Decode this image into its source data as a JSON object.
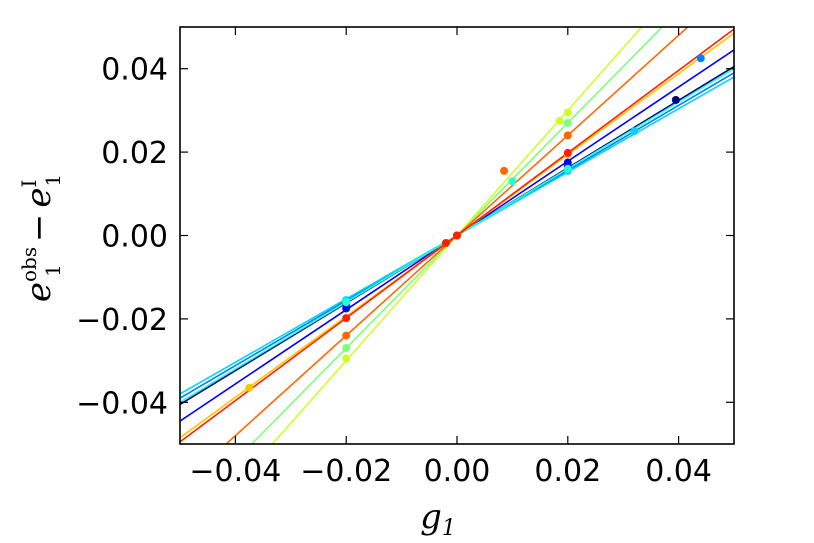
{
  "chart_data": {
    "type": "scatter",
    "title": "",
    "xlabel": "g1",
    "ylabel": "e1^obs − e1^I",
    "xlim": [
      -0.05,
      0.05
    ],
    "ylim": [
      -0.05,
      0.05
    ],
    "xticks": [
      -0.04,
      -0.02,
      0.0,
      0.02,
      0.04
    ],
    "yticks": [
      -0.04,
      -0.02,
      0.0,
      0.02,
      0.04
    ],
    "xtick_labels": [
      "−0.04",
      "−0.02",
      "0.00",
      "0.02",
      "0.04"
    ],
    "ytick_labels": [
      "−0.04",
      "−0.02",
      "0.00",
      "0.02",
      "0.04"
    ],
    "grid": false,
    "legend": "none",
    "series": [
      {
        "color": "#000080",
        "slope": 0.81,
        "points": [
          [
            -0.02,
            -0.0165
          ],
          [
            0.0,
            0.0
          ],
          [
            0.02,
            0.0165
          ],
          [
            0.0395,
            0.0325
          ]
        ]
      },
      {
        "color": "#0000ff",
        "slope": 0.89,
        "points": [
          [
            -0.02,
            -0.0175
          ],
          [
            0.0,
            0.0
          ],
          [
            0.02,
            0.0175
          ]
        ]
      },
      {
        "color": "#0080ff",
        "slope": 0.78,
        "points": [
          [
            -0.02,
            -0.016
          ],
          [
            0.0,
            0.0
          ],
          [
            0.02,
            0.016
          ],
          [
            0.044,
            0.0425
          ]
        ]
      },
      {
        "color": "#00d4ff",
        "slope": 0.76,
        "points": [
          [
            -0.02,
            -0.0155
          ],
          [
            0.0,
            0.0
          ],
          [
            0.02,
            0.0155
          ],
          [
            0.032,
            0.025
          ]
        ]
      },
      {
        "color": "#29ffce",
        "slope": 0.8,
        "points": [
          [
            -0.02,
            -0.016
          ],
          [
            0.0,
            0.0
          ],
          [
            0.02,
            0.016
          ],
          [
            0.01,
            0.013
          ]
        ]
      },
      {
        "color": "#7dff7a",
        "slope": 1.35,
        "points": [
          [
            -0.02,
            -0.027
          ],
          [
            0.0,
            0.0
          ],
          [
            0.02,
            0.027
          ]
        ]
      },
      {
        "color": "#ceff29",
        "slope": 1.5,
        "points": [
          [
            -0.02,
            -0.0295
          ],
          [
            0.0,
            0.0
          ],
          [
            0.02,
            0.0295
          ],
          [
            0.0185,
            0.0275
          ]
        ]
      },
      {
        "color": "#ffc400",
        "slope": 0.97,
        "points": [
          [
            -0.0375,
            -0.0365
          ],
          [
            0.0,
            0.0
          ],
          [
            0.02,
            0.0195
          ]
        ]
      },
      {
        "color": "#ff6800",
        "slope": 1.2,
        "points": [
          [
            -0.02,
            -0.024
          ],
          [
            0.0,
            0.0
          ],
          [
            0.02,
            0.024
          ],
          [
            0.0085,
            0.0155
          ]
        ]
      },
      {
        "color": "#ff2000",
        "slope": 0.99,
        "points": [
          [
            -0.02,
            -0.0198
          ],
          [
            -0.002,
            -0.0018
          ],
          [
            0.0,
            0.0
          ],
          [
            0.02,
            0.0198
          ]
        ]
      }
    ]
  }
}
